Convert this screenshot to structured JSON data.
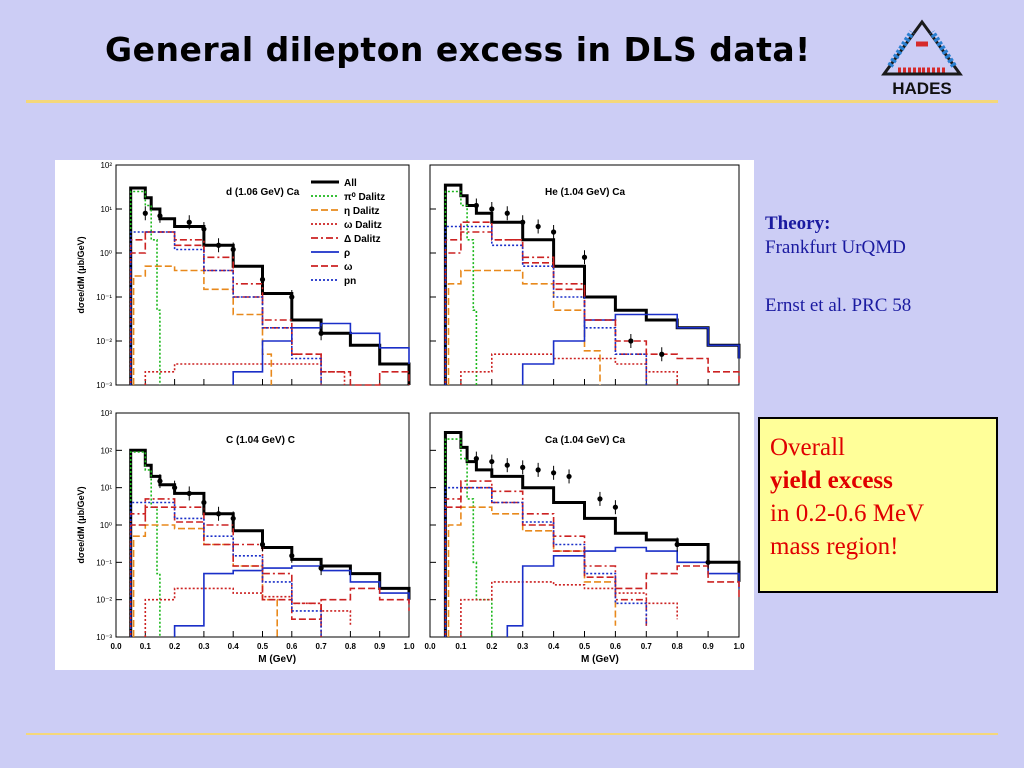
{
  "slide": {
    "title": "General dilepton excess in DLS data!",
    "logo_text": "HADES",
    "accent_rule_color": "#f4d77a",
    "background_color": "#cccdf5"
  },
  "theory": {
    "heading": "Theory:",
    "line1": "Frankfurt UrQMD",
    "line2": "Ernst et al. PRC 58"
  },
  "excess_box": {
    "line1": "Overall",
    "line2": "yield excess",
    "line3": "in 0.2-0.6 MeV",
    "line4": "mass region!"
  },
  "legend": {
    "entries": [
      {
        "label": "All",
        "color": "#000000",
        "dash": "solid"
      },
      {
        "label": "π⁰ Dalitz",
        "color": "#1db81d",
        "dash": "dot"
      },
      {
        "label": "η Dalitz",
        "color": "#e8891c",
        "dash": "dash"
      },
      {
        "label": "ω Dalitz",
        "color": "#cc2222",
        "dash": "dot"
      },
      {
        "label": "Δ Dalitz",
        "color": "#cc2222",
        "dash": "dashdot"
      },
      {
        "label": "ρ",
        "color": "#1a2fc8",
        "dash": "solid"
      },
      {
        "label": "ω",
        "color": "#cc2222",
        "dash": "dash"
      },
      {
        "label": "pn",
        "color": "#1a2fc8",
        "dash": "dot"
      }
    ]
  },
  "chart_data": [
    {
      "type": "line",
      "title": "d (1.06 GeV) Ca",
      "xlabel": "",
      "ylabel": "dσee/dM (μb/GeV)",
      "xlim": [
        0,
        1.0
      ],
      "ylim": [
        0.001,
        100
      ],
      "yscale": "log",
      "yticks": [
        "10⁻³",
        "10⁻²",
        "10⁻¹",
        "10⁰",
        "10¹",
        "10²"
      ],
      "legend": "right",
      "data_points": {
        "x": [
          0.1,
          0.15,
          0.25,
          0.3,
          0.35,
          0.4,
          0.5,
          0.6,
          0.7
        ],
        "y": [
          8,
          7,
          5,
          3.5,
          1.5,
          1.2,
          0.25,
          0.1,
          0.015
        ]
      },
      "series": [
        {
          "label_ref": 0,
          "x": [
            0.05,
            0.08,
            0.1,
            0.12,
            0.15,
            0.2,
            0.3,
            0.4,
            0.5,
            0.6,
            0.7,
            0.8,
            0.9,
            1.0
          ],
          "y": [
            30,
            30,
            18,
            10,
            6,
            4,
            1.5,
            0.5,
            0.12,
            0.03,
            0.015,
            0.008,
            0.003,
            0.001
          ]
        },
        {
          "label_ref": 1,
          "x": [
            0.05,
            0.08,
            0.1,
            0.12,
            0.14,
            0.15
          ],
          "y": [
            25,
            25,
            12,
            2,
            0.05,
            0.001
          ]
        },
        {
          "label_ref": 2,
          "x": [
            0.06,
            0.1,
            0.2,
            0.3,
            0.4,
            0.5,
            0.53
          ],
          "y": [
            0.3,
            0.5,
            0.4,
            0.15,
            0.04,
            0.005,
            0.001
          ]
        },
        {
          "label_ref": 3,
          "x": [
            0.1,
            0.2,
            0.3,
            0.4,
            0.5,
            0.6,
            0.7,
            0.78
          ],
          "y": [
            0.002,
            0.003,
            0.003,
            0.003,
            0.003,
            0.003,
            0.002,
            0.001
          ]
        },
        {
          "label_ref": 4,
          "x": [
            0.05,
            0.1,
            0.2,
            0.3,
            0.4,
            0.5,
            0.6,
            0.7
          ],
          "y": [
            2,
            3,
            2,
            0.8,
            0.2,
            0.03,
            0.005,
            0.001
          ]
        },
        {
          "label_ref": 5,
          "x": [
            0.4,
            0.5,
            0.6,
            0.7,
            0.8,
            0.9,
            1.0
          ],
          "y": [
            0.002,
            0.01,
            0.02,
            0.025,
            0.015,
            0.007,
            0.003
          ]
        },
        {
          "label_ref": 6,
          "x": [
            0.05,
            0.1,
            0.2,
            0.3,
            0.4,
            0.5,
            0.6,
            0.7,
            0.8,
            0.9,
            1.0
          ],
          "y": [
            1,
            3,
            1.5,
            0.4,
            0.1,
            0.02,
            0.005,
            0.002,
            0.001,
            0.002,
            0.001
          ]
        },
        {
          "label_ref": 7,
          "x": [
            0.05,
            0.1,
            0.2,
            0.3,
            0.4,
            0.5,
            0.6,
            0.7
          ],
          "y": [
            3,
            3,
            1.2,
            0.4,
            0.1,
            0.02,
            0.004,
            0.001
          ]
        }
      ]
    },
    {
      "type": "line",
      "title": "He (1.04 GeV) Ca",
      "xlabel": "",
      "ylabel": "",
      "xlim": [
        0,
        1.0
      ],
      "ylim": [
        0.001,
        100
      ],
      "yscale": "log",
      "data_points": {
        "x": [
          0.15,
          0.2,
          0.25,
          0.3,
          0.35,
          0.4,
          0.5,
          0.65,
          0.75
        ],
        "y": [
          12,
          10,
          8,
          5,
          4,
          3,
          0.8,
          0.01,
          0.005
        ]
      },
      "series": [
        {
          "label_ref": 0,
          "x": [
            0.05,
            0.08,
            0.1,
            0.12,
            0.15,
            0.2,
            0.3,
            0.4,
            0.5,
            0.6,
            0.7,
            0.8,
            0.9,
            1.0
          ],
          "y": [
            35,
            35,
            20,
            12,
            8,
            5,
            2,
            0.5,
            0.1,
            0.05,
            0.03,
            0.02,
            0.008,
            0.004
          ]
        },
        {
          "label_ref": 1,
          "x": [
            0.05,
            0.08,
            0.1,
            0.12,
            0.14,
            0.15
          ],
          "y": [
            25,
            25,
            12,
            2,
            0.05,
            0.001
          ]
        },
        {
          "label_ref": 2,
          "x": [
            0.06,
            0.1,
            0.2,
            0.3,
            0.4,
            0.5,
            0.55
          ],
          "y": [
            0.2,
            0.4,
            0.4,
            0.2,
            0.05,
            0.006,
            0.001
          ]
        },
        {
          "label_ref": 3,
          "x": [
            0.1,
            0.2,
            0.3,
            0.4,
            0.5,
            0.6,
            0.7,
            0.8
          ],
          "y": [
            0.002,
            0.005,
            0.005,
            0.004,
            0.004,
            0.003,
            0.002,
            0.001
          ]
        },
        {
          "label_ref": 4,
          "x": [
            0.05,
            0.1,
            0.2,
            0.3,
            0.4,
            0.5,
            0.6,
            0.7
          ],
          "y": [
            1,
            3,
            2,
            0.8,
            0.2,
            0.03,
            0.005,
            0.001
          ]
        },
        {
          "label_ref": 5,
          "x": [
            0.3,
            0.4,
            0.5,
            0.6,
            0.7,
            0.8,
            0.9,
            1.0
          ],
          "y": [
            0.003,
            0.01,
            0.03,
            0.04,
            0.04,
            0.02,
            0.008,
            0.004
          ]
        },
        {
          "label_ref": 6,
          "x": [
            0.05,
            0.1,
            0.2,
            0.3,
            0.4,
            0.5,
            0.6,
            0.7,
            0.8,
            0.9,
            1.0
          ],
          "y": [
            2,
            5,
            2,
            0.6,
            0.15,
            0.03,
            0.01,
            0.005,
            0.004,
            0.002,
            0.001
          ]
        },
        {
          "label_ref": 7,
          "x": [
            0.05,
            0.1,
            0.2,
            0.3,
            0.4,
            0.5,
            0.6,
            0.7
          ],
          "y": [
            4,
            4,
            1.5,
            0.5,
            0.1,
            0.02,
            0.005,
            0.001
          ]
        }
      ]
    },
    {
      "type": "line",
      "title": "C (1.04 GeV) C",
      "xlabel": "M (GeV)",
      "ylabel": "dσee/dM (μb/GeV)",
      "xlim": [
        0,
        1.0
      ],
      "ylim": [
        0.001,
        1000
      ],
      "yscale": "log",
      "xticks": [
        "0.0",
        "0.1",
        "0.2",
        "0.3",
        "0.4",
        "0.5",
        "0.6",
        "0.7",
        "0.8",
        "0.9",
        "1.0"
      ],
      "yticks": [
        "10⁻³",
        "10⁻²",
        "10⁻¹",
        "10⁰",
        "10¹",
        "10²",
        "10³"
      ],
      "data_points": {
        "x": [
          0.15,
          0.2,
          0.25,
          0.3,
          0.35,
          0.4,
          0.5,
          0.6,
          0.7
        ],
        "y": [
          15,
          10,
          7,
          4,
          2,
          1.5,
          0.3,
          0.15,
          0.07
        ]
      },
      "series": [
        {
          "label_ref": 0,
          "x": [
            0.05,
            0.08,
            0.1,
            0.12,
            0.15,
            0.2,
            0.3,
            0.4,
            0.5,
            0.6,
            0.7,
            0.8,
            0.9,
            1.0
          ],
          "y": [
            100,
            100,
            40,
            20,
            12,
            7,
            2,
            0.7,
            0.25,
            0.12,
            0.08,
            0.05,
            0.02,
            0.01
          ]
        },
        {
          "label_ref": 1,
          "x": [
            0.05,
            0.08,
            0.1,
            0.12,
            0.14,
            0.15
          ],
          "y": [
            90,
            90,
            30,
            3,
            0.05,
            0.001
          ]
        },
        {
          "label_ref": 2,
          "x": [
            0.06,
            0.1,
            0.2,
            0.3,
            0.4,
            0.5,
            0.55
          ],
          "y": [
            0.5,
            1,
            0.8,
            0.3,
            0.08,
            0.01,
            0.001
          ]
        },
        {
          "label_ref": 3,
          "x": [
            0.1,
            0.2,
            0.3,
            0.4,
            0.5,
            0.6,
            0.7,
            0.8
          ],
          "y": [
            0.01,
            0.02,
            0.02,
            0.015,
            0.012,
            0.008,
            0.005,
            0.002
          ]
        },
        {
          "label_ref": 4,
          "x": [
            0.05,
            0.1,
            0.2,
            0.3,
            0.4,
            0.5,
            0.6,
            0.7
          ],
          "y": [
            2,
            5,
            3,
            1,
            0.3,
            0.05,
            0.008,
            0.001
          ]
        },
        {
          "label_ref": 5,
          "x": [
            0.2,
            0.3,
            0.4,
            0.5,
            0.6,
            0.7,
            0.8,
            0.9,
            1.0
          ],
          "y": [
            0.002,
            0.05,
            0.06,
            0.07,
            0.08,
            0.06,
            0.03,
            0.015,
            0.008
          ]
        },
        {
          "label_ref": 6,
          "x": [
            0.05,
            0.1,
            0.2,
            0.3,
            0.4,
            0.5,
            0.6,
            0.7,
            0.8,
            0.9,
            1.0
          ],
          "y": [
            1,
            3,
            1.2,
            0.3,
            0.08,
            0.01,
            0.003,
            0.01,
            0.02,
            0.01,
            0.005
          ]
        },
        {
          "label_ref": 7,
          "x": [
            0.05,
            0.1,
            0.2,
            0.3,
            0.4,
            0.5,
            0.6,
            0.7
          ],
          "y": [
            4,
            4,
            1.5,
            0.5,
            0.15,
            0.03,
            0.005,
            0.001
          ]
        }
      ]
    },
    {
      "type": "line",
      "title": "Ca (1.04 GeV) Ca",
      "xlabel": "M (GeV)",
      "ylabel": "",
      "xlim": [
        0,
        1.0
      ],
      "ylim": [
        0.001,
        1000
      ],
      "yscale": "log",
      "xticks": [
        "0.0",
        "0.1",
        "0.2",
        "0.3",
        "0.4",
        "0.5",
        "0.6",
        "0.7",
        "0.8",
        "0.9",
        "1.0"
      ],
      "data_points": {
        "x": [
          0.15,
          0.2,
          0.25,
          0.3,
          0.35,
          0.4,
          0.45,
          0.55,
          0.6,
          0.8,
          0.9
        ],
        "y": [
          60,
          50,
          40,
          35,
          30,
          25,
          20,
          5,
          3,
          0.3,
          0.1
        ]
      },
      "series": [
        {
          "label_ref": 0,
          "x": [
            0.05,
            0.08,
            0.1,
            0.12,
            0.15,
            0.2,
            0.3,
            0.4,
            0.5,
            0.6,
            0.7,
            0.8,
            0.9,
            1.0
          ],
          "y": [
            300,
            300,
            120,
            50,
            30,
            20,
            10,
            4,
            1.5,
            0.6,
            0.4,
            0.3,
            0.1,
            0.03
          ]
        },
        {
          "label_ref": 1,
          "x": [
            0.05,
            0.08,
            0.1,
            0.12,
            0.14,
            0.15,
            0.2
          ],
          "y": [
            200,
            200,
            60,
            5,
            0.1,
            0.01,
            0.001
          ]
        },
        {
          "label_ref": 2,
          "x": [
            0.06,
            0.1,
            0.2,
            0.3,
            0.4,
            0.5,
            0.6
          ],
          "y": [
            1,
            3,
            2,
            0.7,
            0.2,
            0.03,
            0.002
          ]
        },
        {
          "label_ref": 3,
          "x": [
            0.1,
            0.2,
            0.3,
            0.4,
            0.5,
            0.6,
            0.7,
            0.8
          ],
          "y": [
            0.01,
            0.03,
            0.03,
            0.025,
            0.02,
            0.015,
            0.008,
            0.003
          ]
        },
        {
          "label_ref": 4,
          "x": [
            0.05,
            0.1,
            0.2,
            0.3,
            0.4,
            0.5,
            0.6,
            0.7
          ],
          "y": [
            5,
            15,
            8,
            2,
            0.5,
            0.08,
            0.01,
            0.002
          ]
        },
        {
          "label_ref": 5,
          "x": [
            0.25,
            0.3,
            0.4,
            0.5,
            0.6,
            0.7,
            0.8,
            0.9,
            1.0
          ],
          "y": [
            0.002,
            0.08,
            0.15,
            0.2,
            0.25,
            0.2,
            0.1,
            0.05,
            0.02
          ]
        },
        {
          "label_ref": 6,
          "x": [
            0.05,
            0.1,
            0.2,
            0.3,
            0.4,
            0.5,
            0.6,
            0.7,
            0.8,
            0.9,
            1.0
          ],
          "y": [
            3,
            10,
            4,
            1,
            0.2,
            0.04,
            0.02,
            0.05,
            0.08,
            0.03,
            0.01
          ]
        },
        {
          "label_ref": 7,
          "x": [
            0.05,
            0.1,
            0.2,
            0.3,
            0.4,
            0.5,
            0.6,
            0.7
          ],
          "y": [
            10,
            10,
            4,
            1.2,
            0.3,
            0.05,
            0.008,
            0.002
          ]
        }
      ]
    }
  ]
}
